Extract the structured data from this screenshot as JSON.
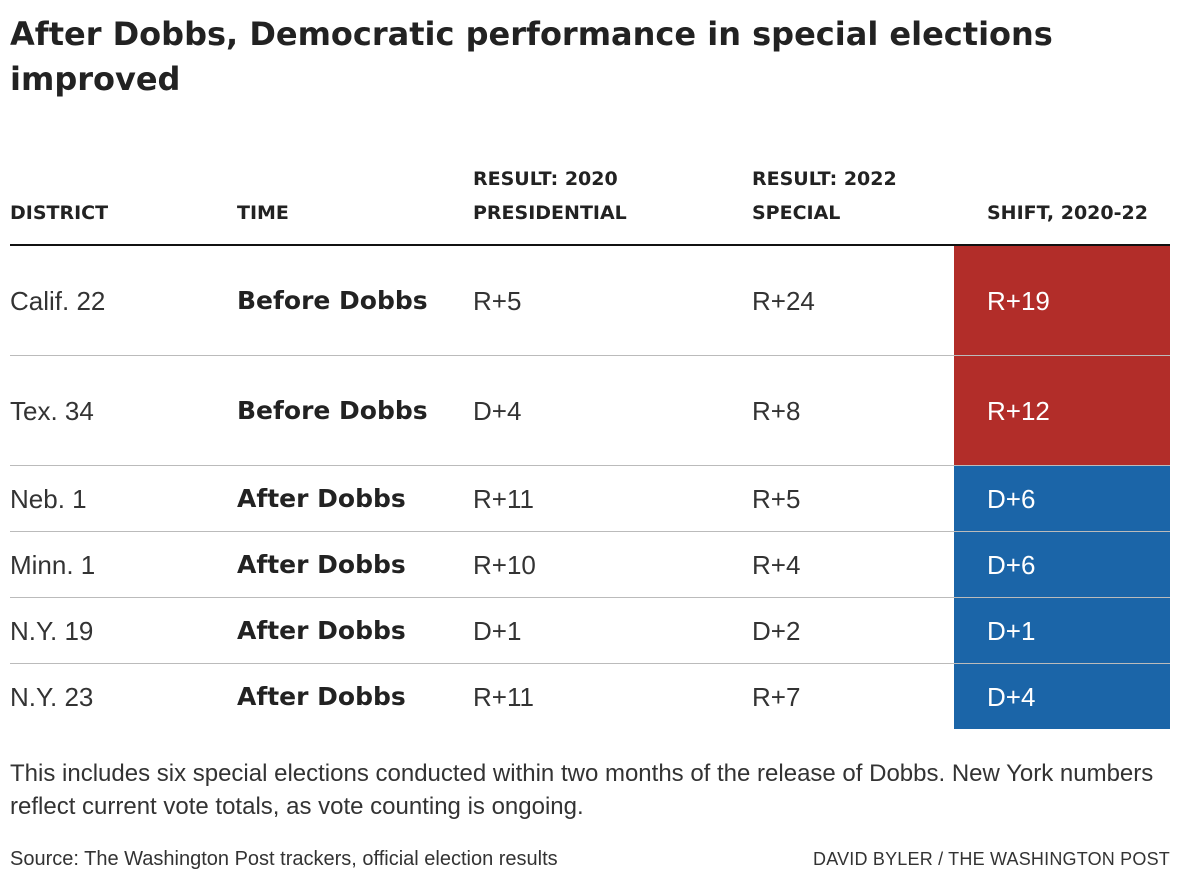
{
  "title": "After Dobbs, Democratic performance in special elections improved",
  "columns": [
    "DISTRICT",
    "TIME",
    "RESULT: 2020 PRESIDENTIAL",
    "RESULT: 2022 SPECIAL",
    "SHIFT, 2020-22"
  ],
  "rows": [
    {
      "district": "Calif. 22",
      "time": "Before Dobbs",
      "result_2020": "R+5",
      "result_2022": "R+24",
      "shift": "R+19",
      "party": "R"
    },
    {
      "district": "Tex. 34",
      "time": "Before Dobbs",
      "result_2020": "D+4",
      "result_2022": "R+8",
      "shift": "R+12",
      "party": "R"
    },
    {
      "district": "Neb. 1",
      "time": "After Dobbs",
      "result_2020": "R+11",
      "result_2022": "R+5",
      "shift": "D+6",
      "party": "D"
    },
    {
      "district": "Minn. 1",
      "time": "After Dobbs",
      "result_2020": "R+10",
      "result_2022": "R+4",
      "shift": "D+6",
      "party": "D"
    },
    {
      "district": "N.Y. 19",
      "time": "After Dobbs",
      "result_2020": "D+1",
      "result_2022": "D+2",
      "shift": "D+1",
      "party": "D"
    },
    {
      "district": "N.Y. 23",
      "time": "After Dobbs",
      "result_2020": "R+11",
      "result_2022": "R+7",
      "shift": "D+4",
      "party": "D"
    }
  ],
  "colors": {
    "republican": "#b22d29",
    "democrat": "#1b65a8"
  },
  "note": "This includes six special elections conducted within two months of the release of Dobbs. New York numbers reflect current vote totals, as vote counting is ongoing.",
  "source": "Source: The Washington Post trackers, official election results",
  "credit": "DAVID BYLER / THE WASHINGTON POST",
  "chart_data": {
    "type": "table",
    "title": "After Dobbs, Democratic performance in special elections improved",
    "columns": [
      "DISTRICT",
      "TIME",
      "RESULT: 2020 PRESIDENTIAL",
      "RESULT: 2022 SPECIAL",
      "SHIFT, 2020-22"
    ],
    "rows": [
      [
        "Calif. 22",
        "Before Dobbs",
        "R+5",
        "R+24",
        "R+19"
      ],
      [
        "Tex. 34",
        "Before Dobbs",
        "D+4",
        "R+8",
        "R+12"
      ],
      [
        "Neb. 1",
        "After Dobbs",
        "R+11",
        "R+5",
        "D+6"
      ],
      [
        "Minn. 1",
        "After Dobbs",
        "R+10",
        "R+4",
        "D+6"
      ],
      [
        "N.Y. 19",
        "After Dobbs",
        "D+1",
        "D+2",
        "D+1"
      ],
      [
        "N.Y. 23",
        "After Dobbs",
        "R+11",
        "R+7",
        "D+4"
      ]
    ]
  }
}
